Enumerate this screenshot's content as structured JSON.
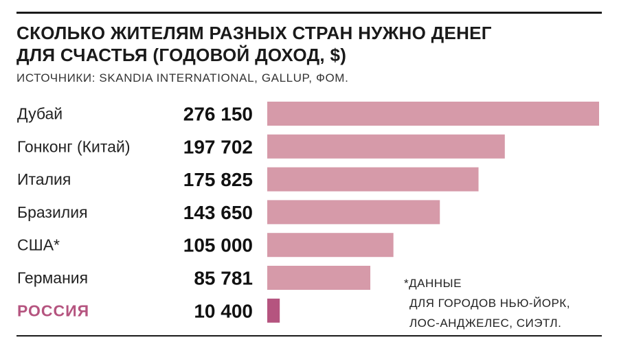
{
  "title_lines": [
    "СКОЛЬКО ЖИТЕЛЯМ РАЗНЫХ СТРАН НУЖНО ДЕНЕГ",
    "ДЛЯ СЧАСТЬЯ (ГОДОВОЙ ДОХОД, $)"
  ],
  "source": "ИСТОЧНИКИ: SKANDIA INTERNATIONAL, GALLUP, ФОМ.",
  "footnote": {
    "lines": [
      "*ДАННЫЕ",
      "ДЛЯ ГОРОДОВ  НЬЮ-ЙОРК,",
      "ЛОС-АНДЖЕЛЕС, СИЭТЛ."
    ]
  },
  "colors": {
    "bar": "#d69aa9",
    "bar_highlight": "#b5547f",
    "label_highlight": "#b5547f"
  },
  "chart_data": {
    "type": "bar",
    "orientation": "horizontal",
    "title": "СКОЛЬКО ЖИТЕЛЯМ РАЗНЫХ СТРАН НУЖНО ДЕНЕГ ДЛЯ СЧАСТЬЯ (ГОДОВОЙ ДОХОД, $)",
    "categories": [
      "Дубай",
      "Гонконг (Китай)",
      "Италия",
      "Бразилия",
      "США*",
      "Германия",
      "РОССИЯ"
    ],
    "values": [
      276150,
      197702,
      175825,
      143650,
      105000,
      85781,
      10400
    ],
    "value_labels": [
      "276 150",
      "197 702",
      "175 825",
      "143 650",
      "105 000",
      "85 781",
      "10 400"
    ],
    "highlight_category": "РОССИЯ",
    "grid": false,
    "legend": "none"
  }
}
